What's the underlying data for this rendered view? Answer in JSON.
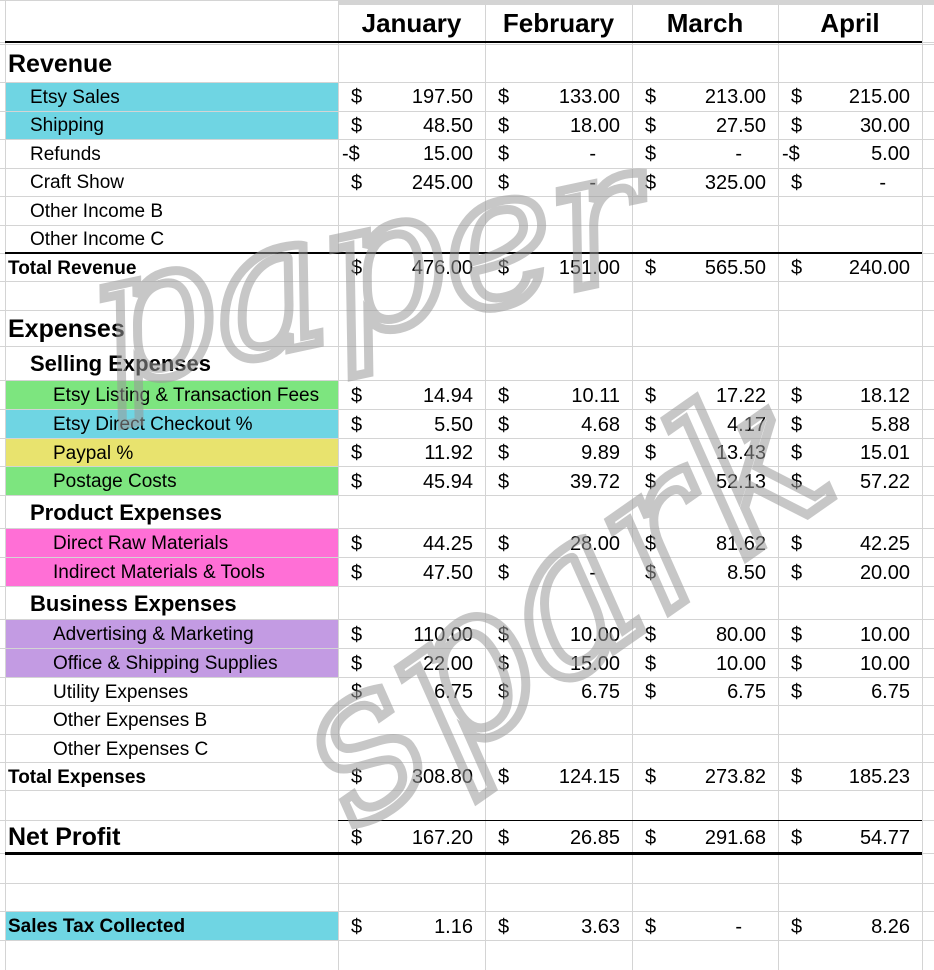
{
  "header": {
    "months": [
      "January",
      "February",
      "March",
      "April"
    ]
  },
  "rows": [
    {
      "label": "Revenue",
      "indent": 0,
      "bold": true,
      "heading": true
    },
    {
      "label": "Etsy Sales",
      "indent": 1,
      "highlight": "#6fd5e3",
      "cells": [
        [
          "$",
          "197.50"
        ],
        [
          "$",
          "133.00"
        ],
        [
          "$",
          "213.00"
        ],
        [
          "$",
          "215.00"
        ]
      ]
    },
    {
      "label": "Shipping",
      "indent": 1,
      "highlight": "#6fd5e3",
      "cells": [
        [
          "$",
          "48.50"
        ],
        [
          "$",
          "18.00"
        ],
        [
          "$",
          "27.50"
        ],
        [
          "$",
          "30.00"
        ]
      ]
    },
    {
      "label": "Refunds",
      "indent": 1,
      "cells": [
        [
          "-$",
          "15.00"
        ],
        [
          "$",
          "-"
        ],
        [
          "$",
          "-"
        ],
        [
          "-$",
          "5.00"
        ]
      ]
    },
    {
      "label": "Craft Show",
      "indent": 1,
      "cells": [
        [
          "$",
          "245.00"
        ],
        [
          "$",
          "-"
        ],
        [
          "$",
          "325.00"
        ],
        [
          "$",
          "-"
        ]
      ]
    },
    {
      "label": "Other Income B",
      "indent": 1
    },
    {
      "label": "Other Income C",
      "indent": 1
    },
    {
      "label": "Total Revenue",
      "indent": 0,
      "bold": true,
      "cells": [
        [
          "$",
          "476.00"
        ],
        [
          "$",
          "151.00"
        ],
        [
          "$",
          "565.50"
        ],
        [
          "$",
          "240.00"
        ]
      ]
    },
    {
      "label": "Expenses",
      "indent": 0,
      "bold": true,
      "heading": true
    },
    {
      "label": "Selling Expenses",
      "indent": 1,
      "bold": true,
      "heading": true
    },
    {
      "label": "Etsy Listing & Transaction Fees",
      "indent": 2,
      "highlight": "#7de57f",
      "cells": [
        [
          "$",
          "14.94"
        ],
        [
          "$",
          "10.11"
        ],
        [
          "$",
          "17.22"
        ],
        [
          "$",
          "18.12"
        ]
      ]
    },
    {
      "label": "Etsy Direct Checkout %",
      "indent": 2,
      "highlight": "#6fd5e3",
      "cells": [
        [
          "$",
          "5.50"
        ],
        [
          "$",
          "4.68"
        ],
        [
          "$",
          "4.17"
        ],
        [
          "$",
          "5.88"
        ]
      ]
    },
    {
      "label": "Paypal %",
      "indent": 2,
      "highlight": "#e8e36e",
      "cells": [
        [
          "$",
          "11.92"
        ],
        [
          "$",
          "9.89"
        ],
        [
          "$",
          "13.43"
        ],
        [
          "$",
          "15.01"
        ]
      ]
    },
    {
      "label": "Postage Costs",
      "indent": 2,
      "highlight": "#7de57f",
      "cells": [
        [
          "$",
          "45.94"
        ],
        [
          "$",
          "39.72"
        ],
        [
          "$",
          "52.13"
        ],
        [
          "$",
          "57.22"
        ]
      ]
    },
    {
      "label": "Product Expenses",
      "indent": 1,
      "bold": true,
      "heading": true
    },
    {
      "label": "Direct Raw Materials",
      "indent": 2,
      "highlight": "#ff6fd6",
      "cells": [
        [
          "$",
          "44.25"
        ],
        [
          "$",
          "28.00"
        ],
        [
          "$",
          "81.62"
        ],
        [
          "$",
          "42.25"
        ]
      ]
    },
    {
      "label": "Indirect Materials & Tools",
      "indent": 2,
      "highlight": "#ff6fd6",
      "cells": [
        [
          "$",
          "47.50"
        ],
        [
          "$",
          "-"
        ],
        [
          "$",
          "8.50"
        ],
        [
          "$",
          "20.00"
        ]
      ]
    },
    {
      "label": "Business Expenses",
      "indent": 1,
      "bold": true,
      "heading": true
    },
    {
      "label": "Advertising & Marketing",
      "indent": 2,
      "highlight": "#c39be3",
      "cells": [
        [
          "$",
          "110.00"
        ],
        [
          "$",
          "10.00"
        ],
        [
          "$",
          "80.00"
        ],
        [
          "$",
          "10.00"
        ]
      ]
    },
    {
      "label": "Office & Shipping Supplies",
      "indent": 2,
      "highlight": "#c39be3",
      "cells": [
        [
          "$",
          "22.00"
        ],
        [
          "$",
          "15.00"
        ],
        [
          "$",
          "10.00"
        ],
        [
          "$",
          "10.00"
        ]
      ]
    },
    {
      "label": "Utility Expenses",
      "indent": 2,
      "cells": [
        [
          "$",
          "6.75"
        ],
        [
          "$",
          "6.75"
        ],
        [
          "$",
          "6.75"
        ],
        [
          "$",
          "6.75"
        ]
      ]
    },
    {
      "label": "Other Expenses B",
      "indent": 2
    },
    {
      "label": "Other Expenses C",
      "indent": 2
    },
    {
      "label": "Total Expenses",
      "indent": 0,
      "bold": true,
      "cells": [
        [
          "$",
          "308.80"
        ],
        [
          "$",
          "124.15"
        ],
        [
          "$",
          "273.82"
        ],
        [
          "$",
          "185.23"
        ]
      ]
    },
    {
      "label": "Net Profit",
      "indent": 0,
      "bold": true,
      "heading": true,
      "cells": [
        [
          "$",
          "167.20"
        ],
        [
          "$",
          "26.85"
        ],
        [
          "$",
          "291.68"
        ],
        [
          "$",
          "54.77"
        ]
      ]
    },
    {
      "label": "Sales Tax Collected",
      "indent": 0,
      "bold": true,
      "highlight": "#6fd5e3",
      "cells": [
        [
          "$",
          "1.16"
        ],
        [
          "$",
          "3.63"
        ],
        [
          "$",
          "-"
        ],
        [
          "$",
          "8.26"
        ]
      ]
    }
  ],
  "watermark": [
    "paper",
    "spark"
  ]
}
